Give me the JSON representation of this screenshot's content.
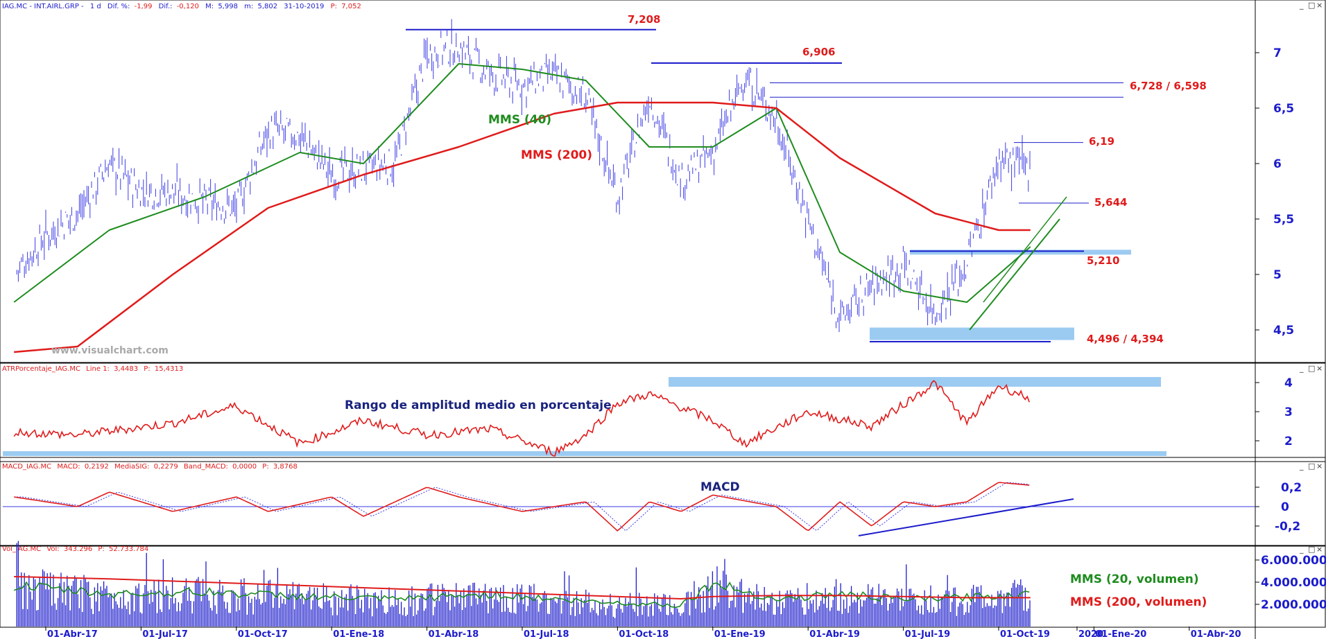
{
  "colors": {
    "price_bars": "#3a3ae6",
    "sma_short": "#1e8c1e",
    "sma_long": "#e01b1b",
    "level_lines": "#1c1ccc",
    "highlight_band": "#9ccbf2",
    "atr_line": "#e01b1b",
    "macd_line": "#e01b1b",
    "macd_signal": "#3a3ae6",
    "volume_bars": "#1c1ccc",
    "axis_text": "#1c1ccc",
    "label_red": "#e01b1b",
    "label_green": "#1e8c1e",
    "label_navy": "#1a237e"
  },
  "panels": {
    "price": {
      "header": {
        "symbol": "IAG.MC - INT.AIRL.GRP -",
        "timeframe": "1 d",
        "dif_pct_label": "Dif. %:",
        "dif_pct_value": "-1,99",
        "dif_label": "Dif.:",
        "dif_value": "-0,120",
        "high_label": "M:",
        "high_value": "5,998",
        "low_label": "m:",
        "low_value": "5,802",
        "date": "31-10-2019",
        "close_label": "P:",
        "close_value": "7,052"
      },
      "y_ticks": [
        "7",
        "6,5",
        "6",
        "5,5",
        "5",
        "4,5"
      ],
      "level_labels": [
        "7,208",
        "6,906",
        "6,728 / 6,598",
        "6,19",
        "5,644",
        "5,210",
        "4,496  / 4,394"
      ],
      "annotations": {
        "sma_short": "MMS (40)",
        "sma_long": "MMS (200)",
        "watermark": "www.visualchart.com"
      },
      "window_buttons": [
        "_",
        "□",
        "×"
      ]
    },
    "atr": {
      "header": {
        "name": "ATRPorcentaje_IAG.MC",
        "line_label": "Line 1:",
        "line_value": "3,4483",
        "p_label": "P:",
        "p_value": "15,4313"
      },
      "y_ticks": [
        "4",
        "3",
        "2"
      ],
      "annotation": "Rango de amplitud medio en porcentaje",
      "window_buttons": [
        "_",
        "□",
        "×"
      ]
    },
    "macd": {
      "header": {
        "name": "MACD_IAG.MC",
        "macd_label": "MACD:",
        "macd_value": "0,2192",
        "sig_label": "MediaSIG:",
        "sig_value": "0,2279",
        "band_label": "Band_MACD:",
        "band_value": "0,0000",
        "p_label": "P:",
        "p_value": "3,8768"
      },
      "y_ticks": [
        "0,2",
        "0",
        "-0,2"
      ],
      "annotation": "MACD",
      "window_buttons": [
        "_",
        "□",
        "×"
      ]
    },
    "volume": {
      "header": {
        "name": "Vol_IAG.MC",
        "vol_label": "Vol:",
        "vol_value": "343.296",
        "p_label": "P:",
        "p_value": "52.733.784"
      },
      "y_ticks": [
        "6.000.000",
        "4.000.000",
        "2.000.000"
      ],
      "annotations": {
        "sma_short": "MMS (20, volumen)",
        "sma_long": "MMS (200, volumen)"
      },
      "window_buttons": [
        "_",
        "□",
        "×"
      ]
    }
  },
  "x_axis": {
    "labels": [
      "01-Abr-17",
      "01-Jul-17",
      "01-Oct-17",
      "01-Ene-18",
      "01-Abr-18",
      "01-Jul-18",
      "01-Oct-18",
      "01-Ene-19",
      "01-Abr-19",
      "01-Jul-19",
      "01-Oct-19",
      "2020",
      "01-Ene-20",
      "01-Abr-20"
    ]
  },
  "chart_data": {
    "type": "stock",
    "title": "IAG.MC - INT.AIRL.GRP - 1 d",
    "period": {
      "start": "2017-03",
      "end": "2019-10-31"
    },
    "price_path": {
      "dates": [
        "2017-03-01",
        "2017-04-01",
        "2017-05-01",
        "2017-06-01",
        "2017-07-01",
        "2017-08-01",
        "2017-09-01",
        "2017-10-01",
        "2017-11-01",
        "2017-12-01",
        "2018-01-01",
        "2018-02-01",
        "2018-03-01",
        "2018-04-01",
        "2018-05-01",
        "2018-06-01",
        "2018-07-01",
        "2018-08-01",
        "2018-09-01",
        "2018-10-01",
        "2018-11-01",
        "2018-12-01",
        "2019-01-01",
        "2019-02-01",
        "2019-03-01",
        "2019-04-01",
        "2019-05-01",
        "2019-06-01",
        "2019-07-01",
        "2019-08-01",
        "2019-09-01",
        "2019-10-01",
        "2019-10-31"
      ],
      "close": [
        5.0,
        5.35,
        5.55,
        6.0,
        5.75,
        5.75,
        5.65,
        5.6,
        6.3,
        6.25,
        5.9,
        5.95,
        6.0,
        7.0,
        7.05,
        6.8,
        6.7,
        6.8,
        6.6,
        5.7,
        6.6,
        5.85,
        6.1,
        6.78,
        6.4,
        5.5,
        4.6,
        4.9,
        5.1,
        4.65,
        5.1,
        6.05,
        5.95
      ]
    },
    "series": [
      {
        "name": "MMS (40)",
        "dates": [
          "2017-03-01",
          "2017-06-01",
          "2017-09-01",
          "2017-12-01",
          "2018-02-01",
          "2018-05-01",
          "2018-07-01",
          "2018-09-01",
          "2018-11-01",
          "2019-01-01",
          "2019-03-01",
          "2019-05-01",
          "2019-07-01",
          "2019-09-01",
          "2019-10-31"
        ],
        "values": [
          4.75,
          5.4,
          5.7,
          6.1,
          6.0,
          6.9,
          6.85,
          6.75,
          6.15,
          6.15,
          6.5,
          5.2,
          4.85,
          4.75,
          5.25
        ]
      },
      {
        "name": "MMS (200)",
        "dates": [
          "2017-03-01",
          "2017-05-01",
          "2017-08-01",
          "2017-11-01",
          "2018-02-01",
          "2018-05-01",
          "2018-08-01",
          "2018-10-01",
          "2019-01-01",
          "2019-03-01",
          "2019-05-01",
          "2019-08-01",
          "2019-10-01",
          "2019-10-31"
        ],
        "values": [
          4.3,
          4.35,
          5.0,
          5.6,
          5.9,
          6.15,
          6.45,
          6.55,
          6.55,
          6.5,
          6.05,
          5.55,
          5.4,
          5.4
        ]
      }
    ],
    "levels": [
      {
        "label": "7,208",
        "value": 7.208
      },
      {
        "label": "6,906",
        "value": 6.906
      },
      {
        "label": "6,728",
        "value": 6.728
      },
      {
        "label": "6,598",
        "value": 6.598
      },
      {
        "label": "6,19",
        "value": 6.19
      },
      {
        "label": "5,644",
        "value": 5.644
      },
      {
        "label": "5,210",
        "value": 5.21
      },
      {
        "label": "4,496",
        "value": 4.496
      },
      {
        "label": "4,394",
        "value": 4.394
      }
    ],
    "ylim": [
      4.2,
      7.4
    ],
    "indicators": {
      "atr_pct": {
        "dates": [
          "2017-03-01",
          "2017-05-01",
          "2017-08-01",
          "2017-10-01",
          "2017-12-01",
          "2018-02-01",
          "2018-04-01",
          "2018-06-01",
          "2018-08-01",
          "2018-09-01",
          "2018-10-01",
          "2018-11-01",
          "2019-01-01",
          "2019-02-01",
          "2019-04-01",
          "2019-06-01",
          "2019-08-01",
          "2019-09-01",
          "2019-10-01",
          "2019-10-31"
        ],
        "values": [
          2.3,
          2.2,
          2.6,
          3.2,
          1.9,
          2.7,
          2.2,
          2.4,
          1.6,
          2.2,
          3.3,
          3.6,
          2.7,
          1.9,
          3.0,
          2.5,
          4.0,
          2.6,
          3.9,
          3.45
        ],
        "ylim": [
          1.5,
          4.3
        ],
        "ticks": [
          4,
          3,
          2
        ]
      },
      "macd": {
        "dates": [
          "2017-03-01",
          "2017-05-01",
          "2017-06-01",
          "2017-08-01",
          "2017-10-01",
          "2017-11-01",
          "2018-01-01",
          "2018-02-01",
          "2018-04-01",
          "2018-05-01",
          "2018-07-01",
          "2018-09-01",
          "2018-10-01",
          "2018-11-01",
          "2018-12-01",
          "2019-01-01",
          "2019-03-01",
          "2019-04-01",
          "2019-05-01",
          "2019-06-01",
          "2019-07-01",
          "2019-08-01",
          "2019-09-01",
          "2019-10-01",
          "2019-10-31"
        ],
        "macd": [
          0.1,
          0.0,
          0.15,
          -0.05,
          0.1,
          -0.05,
          0.1,
          -0.1,
          0.2,
          0.1,
          -0.05,
          0.05,
          -0.25,
          0.05,
          -0.05,
          0.12,
          0.0,
          -0.25,
          0.05,
          -0.2,
          0.05,
          0.0,
          0.05,
          0.25,
          0.22
        ],
        "ylim": [
          -0.3,
          0.3
        ],
        "ticks": [
          0.2,
          0,
          -0.2
        ]
      },
      "volume": {
        "dates": [
          "2017-03-01",
          "2017-06-01",
          "2017-09-01",
          "2017-12-01",
          "2018-03-01",
          "2018-06-01",
          "2018-09-01",
          "2018-12-01",
          "2019-01-01",
          "2019-03-01",
          "2019-05-01",
          "2019-07-01",
          "2019-09-01",
          "2019-10-31"
        ],
        "values": [
          3800000,
          3000000,
          3200000,
          2800000,
          2500000,
          3000000,
          2300000,
          2000000,
          4000000,
          2500000,
          3000000,
          2500000,
          2700000,
          3000000
        ],
        "sma_long": [
          4500000,
          4300000,
          4000000,
          3700000,
          3400000,
          3100000,
          2800000,
          2500000,
          2700000,
          2800000,
          2800000,
          2700000,
          2600000,
          2600000
        ],
        "ylim": [
          0,
          6500000
        ]
      }
    }
  }
}
